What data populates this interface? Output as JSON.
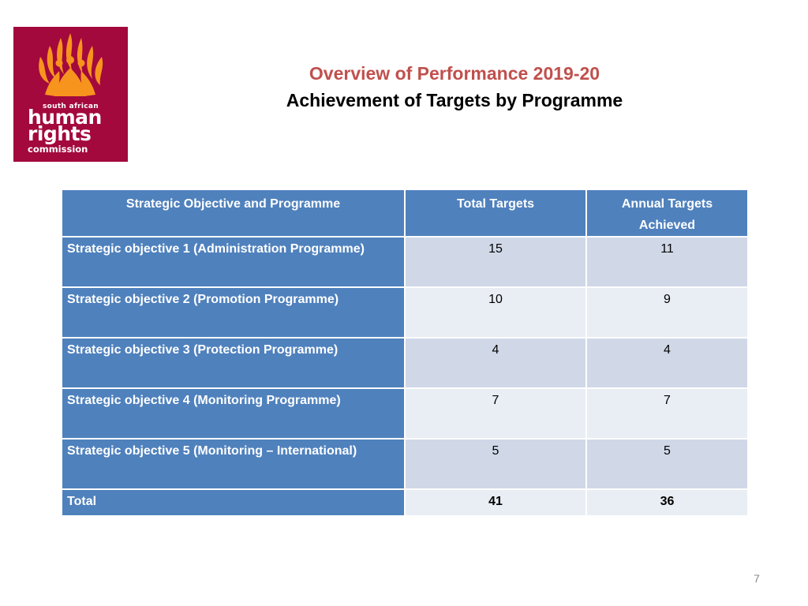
{
  "logo": {
    "line1": "south african",
    "line2": "human",
    "line3": "rights",
    "line4": "commission",
    "colors": {
      "background": "#a3093d",
      "flame": "#f7941d"
    }
  },
  "titles": {
    "main": "Overview of Performance 2019-20",
    "sub": "Achievement of Targets by Programme"
  },
  "table": {
    "headers": [
      "Strategic Objective  and Programme",
      "Total Targets",
      "Annual Targets Achieved"
    ],
    "rows": [
      {
        "objective": "Strategic objective 1 (Administration Programme)",
        "total": "15",
        "achieved": "11"
      },
      {
        "objective": "Strategic objective 2 (Promotion Programme)",
        "total": "10",
        "achieved": "9"
      },
      {
        "objective": "Strategic objective 3 (Protection Programme)",
        "total": "4",
        "achieved": "4"
      },
      {
        "objective": "Strategic objective 4 (Monitoring Programme)",
        "total": "7",
        "achieved": "7"
      },
      {
        "objective": "Strategic objective 5 (Monitoring – International)",
        "total": "5",
        "achieved": "5"
      }
    ],
    "total_row": {
      "label": "Total",
      "total": "41",
      "achieved": "36"
    }
  },
  "page_number": "7",
  "colors": {
    "header_blue": "#4f81bd",
    "title_red": "#c0504d",
    "row_light": "#d0d8e8",
    "row_lighter": "#e9edf4"
  }
}
